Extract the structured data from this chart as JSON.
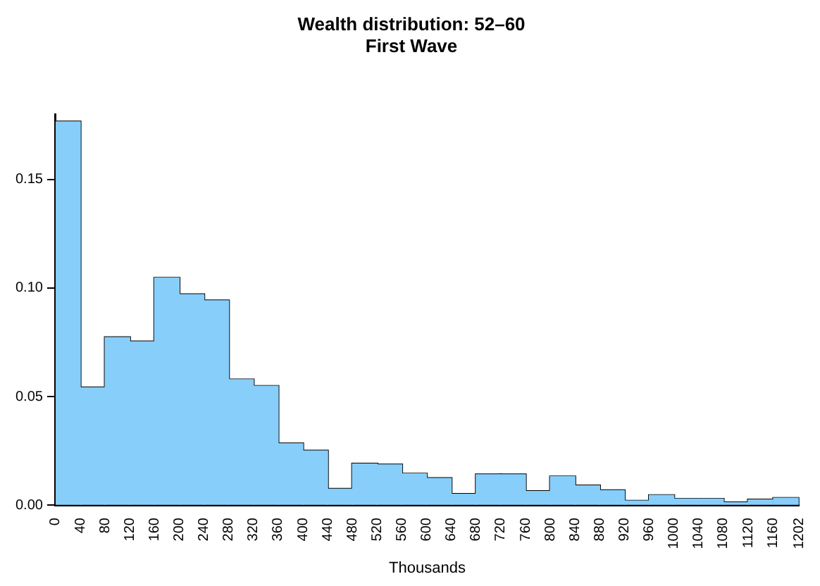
{
  "chart_data": {
    "type": "histogram",
    "title": "Wealth distribution: 52–60",
    "subtitle": "First Wave",
    "xlabel": "Thousands",
    "bins": [
      0,
      40,
      80,
      120,
      160,
      200,
      240,
      280,
      320,
      360,
      400,
      440,
      480,
      520,
      560,
      600,
      640,
      680,
      720,
      760,
      800,
      840,
      880,
      920,
      960,
      1000,
      1040,
      1080,
      1120,
      1160,
      1202
    ],
    "values": [
      0.1766,
      0.0541,
      0.0772,
      0.0753,
      0.1046,
      0.097,
      0.0942,
      0.0578,
      0.0548,
      0.0283,
      0.025,
      0.0074,
      0.019,
      0.0186,
      0.0144,
      0.0123,
      0.005,
      0.014,
      0.014,
      0.0063,
      0.0131,
      0.0089,
      0.0067,
      0.0019,
      0.0045,
      0.0028,
      0.0028,
      0.0011,
      0.0024,
      0.0032
    ],
    "color": "#87cefa",
    "xlim": [
      0,
      1202
    ],
    "xticks": [
      0,
      40,
      80,
      120,
      160,
      200,
      240,
      280,
      320,
      360,
      400,
      440,
      480,
      520,
      560,
      600,
      640,
      680,
      720,
      760,
      800,
      840,
      880,
      920,
      960,
      1000,
      1040,
      1080,
      1120,
      1160,
      1202
    ],
    "ylim": [
      0,
      0.18
    ],
    "yticks": [
      {
        "value": 0,
        "label": "0.00"
      },
      {
        "value": 0.05,
        "label": "0.05"
      },
      {
        "value": 0.1,
        "label": "0.10"
      },
      {
        "value": 0.15,
        "label": "0.15"
      }
    ],
    "grid": false,
    "legend": false
  }
}
